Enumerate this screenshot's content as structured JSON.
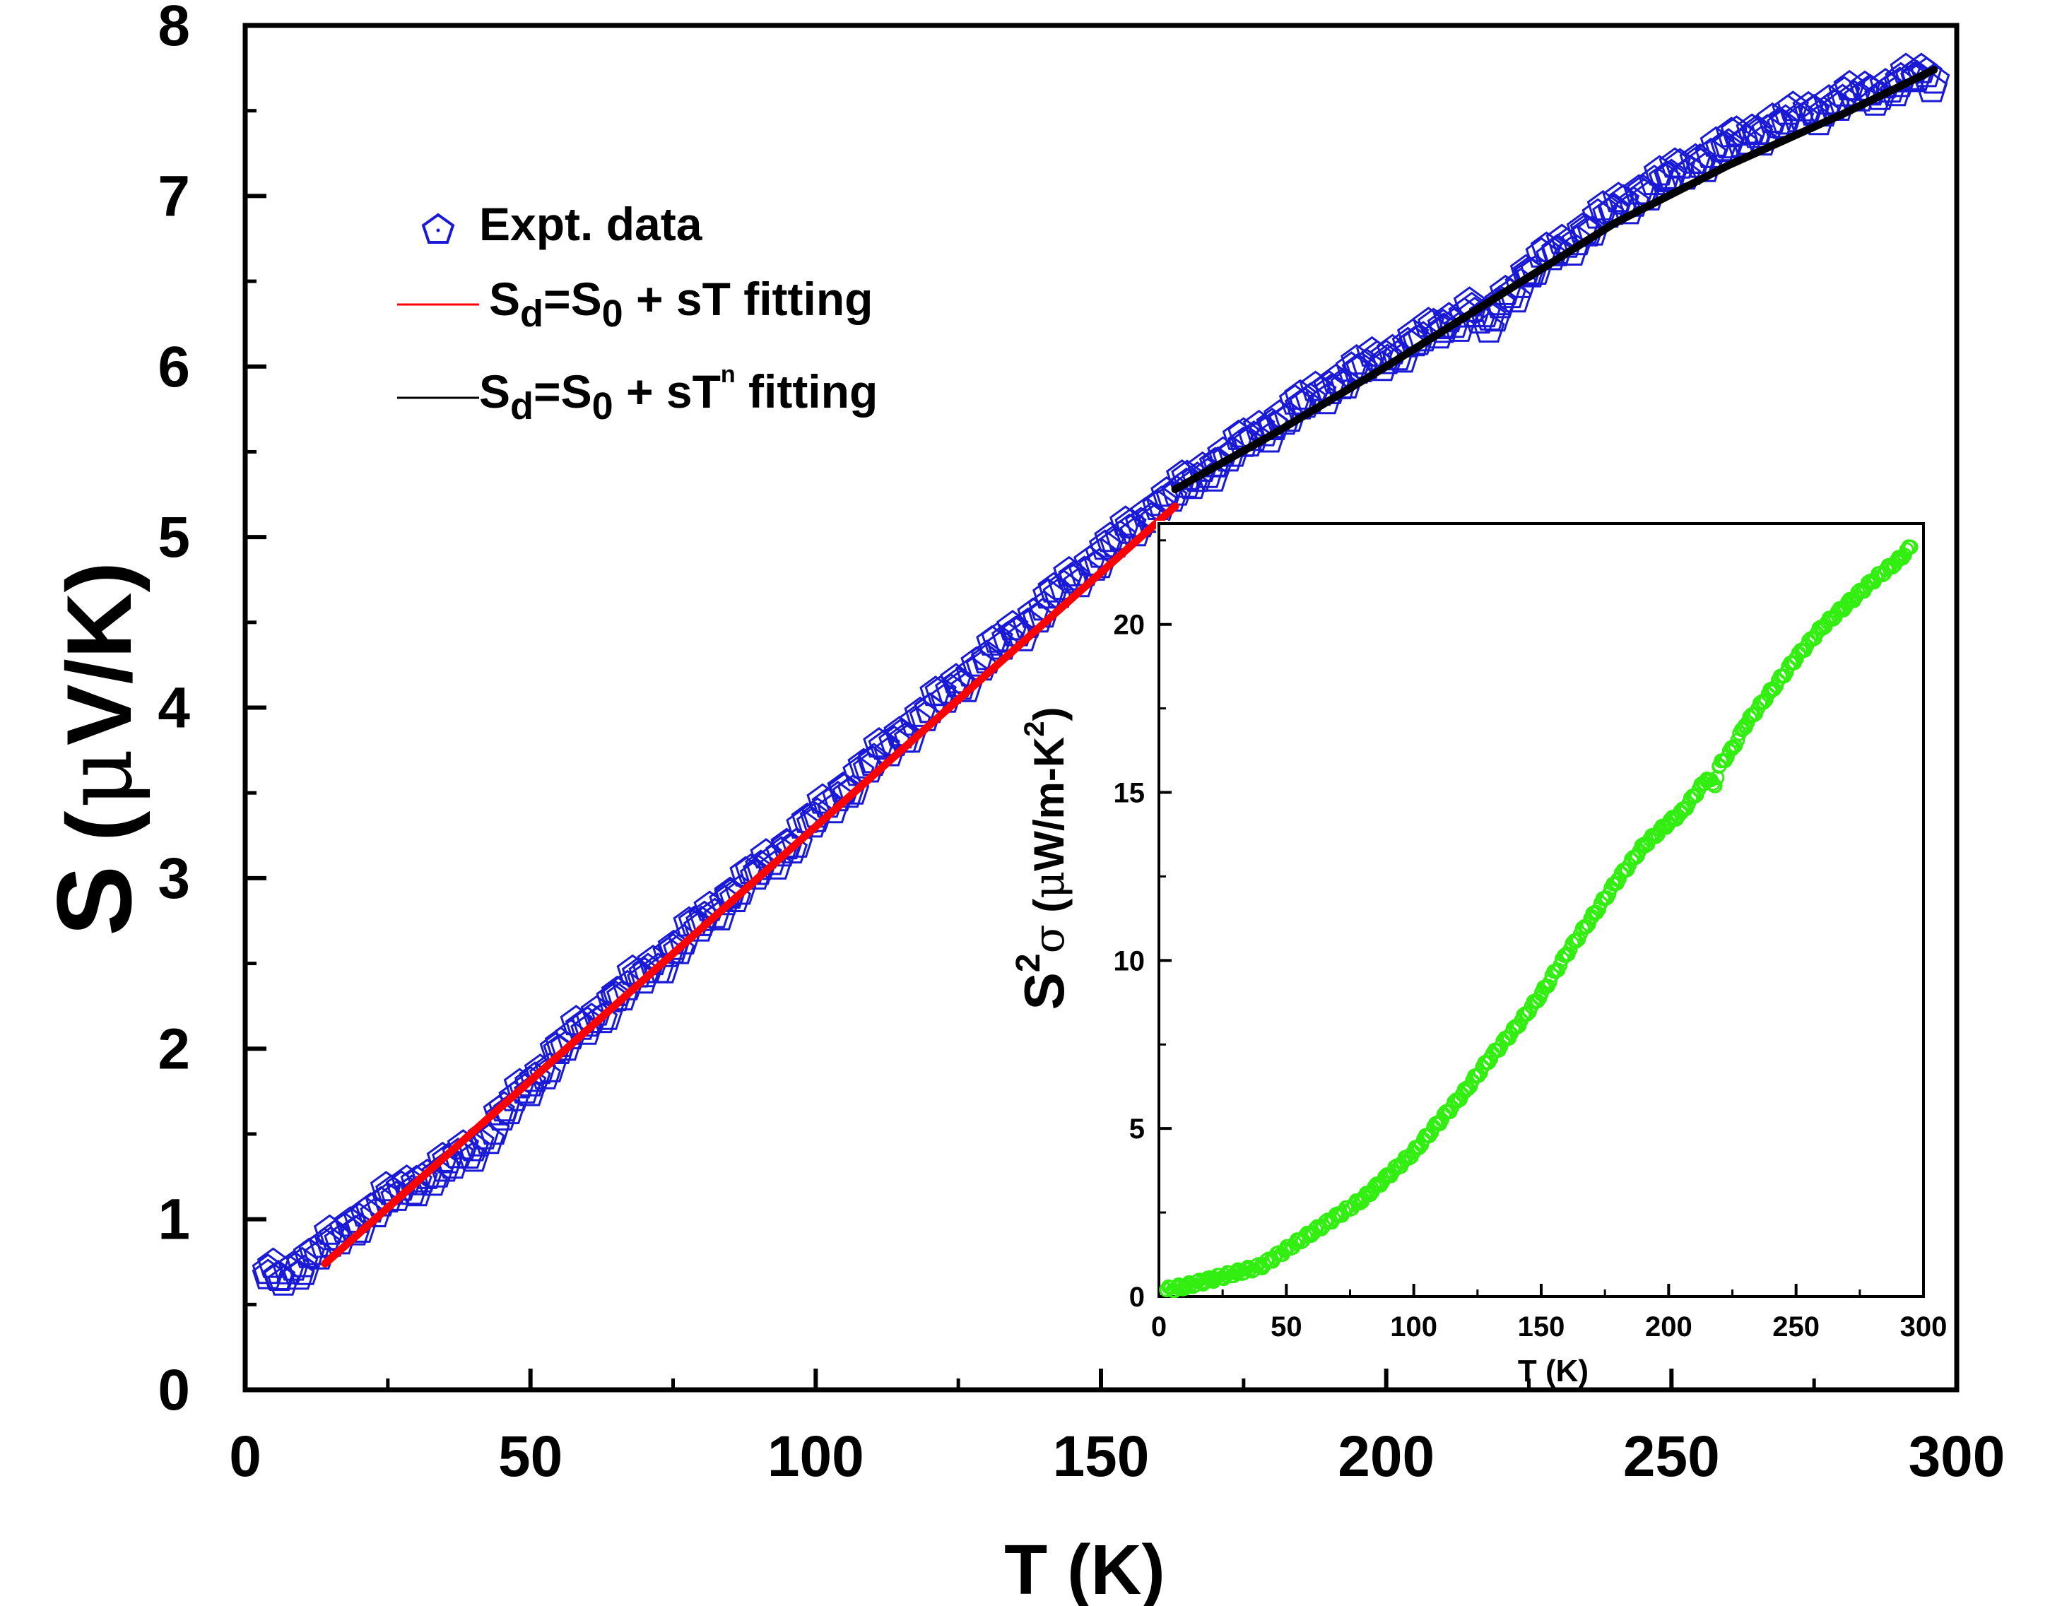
{
  "chart_data": [
    {
      "type": "scatter",
      "title": "",
      "xlabel": "T (K)",
      "ylabel_text": "S",
      "ylabel_unit_open": "(",
      "ylabel_unit_mu": "μ",
      "ylabel_unit_rest": "V/K)",
      "xlim": [
        0,
        300
      ],
      "ylim": [
        0,
        8
      ],
      "x_ticks": [
        "0",
        "50",
        "100",
        "150",
        "200",
        "250",
        "300"
      ],
      "y_ticks": [
        "0",
        "1",
        "2",
        "3",
        "4",
        "5",
        "6",
        "7",
        "8"
      ],
      "grid": false,
      "legend_position": "top-left",
      "legend": [
        {
          "marker": "open-pentagon",
          "color": "#1a1ad6",
          "label": "Expt. data"
        },
        {
          "marker": "line",
          "color": "#ff0000",
          "label_parts": [
            "S",
            "d",
            "=S",
            "0",
            " + sT fitting"
          ]
        },
        {
          "marker": "line",
          "color": "#000000",
          "label_parts": [
            "S",
            "d",
            "=S",
            "0",
            " + sT",
            "n",
            " fitting"
          ]
        }
      ],
      "series": [
        {
          "name": "Expt. data",
          "style": "open-pentagon markers (dense)",
          "color": "#1a1ad6",
          "x": [
            4,
            6,
            10,
            15,
            20,
            25,
            30,
            35,
            40,
            45,
            50,
            55,
            60,
            65,
            70,
            75,
            80,
            85,
            90,
            95,
            100,
            105,
            110,
            115,
            120,
            125,
            130,
            135,
            140,
            145,
            150,
            155,
            160,
            165,
            170,
            175,
            180,
            185,
            190,
            195,
            200,
            205,
            210,
            215,
            218,
            220,
            225,
            230,
            235,
            240,
            245,
            250,
            255,
            260,
            265,
            270,
            275,
            280,
            285,
            290,
            293,
            296
          ],
          "y": [
            0.67,
            0.66,
            0.74,
            0.86,
            1.0,
            1.12,
            1.22,
            1.3,
            1.42,
            1.6,
            1.8,
            1.99,
            2.15,
            2.3,
            2.44,
            2.58,
            2.74,
            2.9,
            3.04,
            3.19,
            3.35,
            3.52,
            3.68,
            3.84,
            3.99,
            4.14,
            4.3,
            4.44,
            4.59,
            4.75,
            4.9,
            5.04,
            5.18,
            5.31,
            5.43,
            5.55,
            5.66,
            5.77,
            5.88,
            5.98,
            6.06,
            6.14,
            6.24,
            6.34,
            6.22,
            6.38,
            6.55,
            6.68,
            6.8,
            6.92,
            7.03,
            7.12,
            7.21,
            7.3,
            7.38,
            7.44,
            7.5,
            7.56,
            7.61,
            7.66,
            7.7,
            7.68
          ]
        },
        {
          "name": "S_d = S_0 + sT fitting",
          "style": "line",
          "color": "#ff0000",
          "x": [
            14,
            163
          ],
          "y": [
            0.74,
            5.18
          ]
        },
        {
          "name": "S_d = S_0 + sT^n fitting",
          "style": "line",
          "color": "#000000",
          "x": [
            163,
            180,
            200,
            220,
            240,
            260,
            280,
            296
          ],
          "y": [
            5.28,
            5.6,
            6.0,
            6.42,
            6.84,
            7.18,
            7.48,
            7.74
          ]
        }
      ]
    },
    {
      "type": "scatter",
      "title": "",
      "xlabel": "T (K)",
      "ylabel_parts": [
        "S",
        "2",
        "σ",
        " (",
        "μ",
        "W/m-K",
        "2",
        ")"
      ],
      "xlim": [
        0,
        300
      ],
      "ylim": [
        0,
        23
      ],
      "x_ticks": [
        "0",
        "50",
        "100",
        "150",
        "200",
        "250",
        "300"
      ],
      "y_ticks": [
        "0",
        "5",
        "10",
        "15",
        "20"
      ],
      "grid": false,
      "series": [
        {
          "name": "S2sigma",
          "style": "open-circle markers (dense)",
          "color": "#33ee11",
          "x": [
            3,
            10,
            20,
            30,
            40,
            50,
            60,
            70,
            80,
            90,
            100,
            110,
            120,
            130,
            140,
            150,
            160,
            170,
            180,
            190,
            200,
            205,
            210,
            215,
            218,
            220,
            225,
            230,
            240,
            250,
            260,
            270,
            280,
            290,
            295
          ],
          "y": [
            0.2,
            0.3,
            0.5,
            0.7,
            0.9,
            1.4,
            1.9,
            2.4,
            2.9,
            3.6,
            4.3,
            5.2,
            6.1,
            7.1,
            8.0,
            9.0,
            10.2,
            11.3,
            12.4,
            13.4,
            14.1,
            14.4,
            14.9,
            15.4,
            15.2,
            15.8,
            16.3,
            17.0,
            18.0,
            19.0,
            19.9,
            20.6,
            21.3,
            21.9,
            22.3
          ]
        }
      ]
    }
  ]
}
